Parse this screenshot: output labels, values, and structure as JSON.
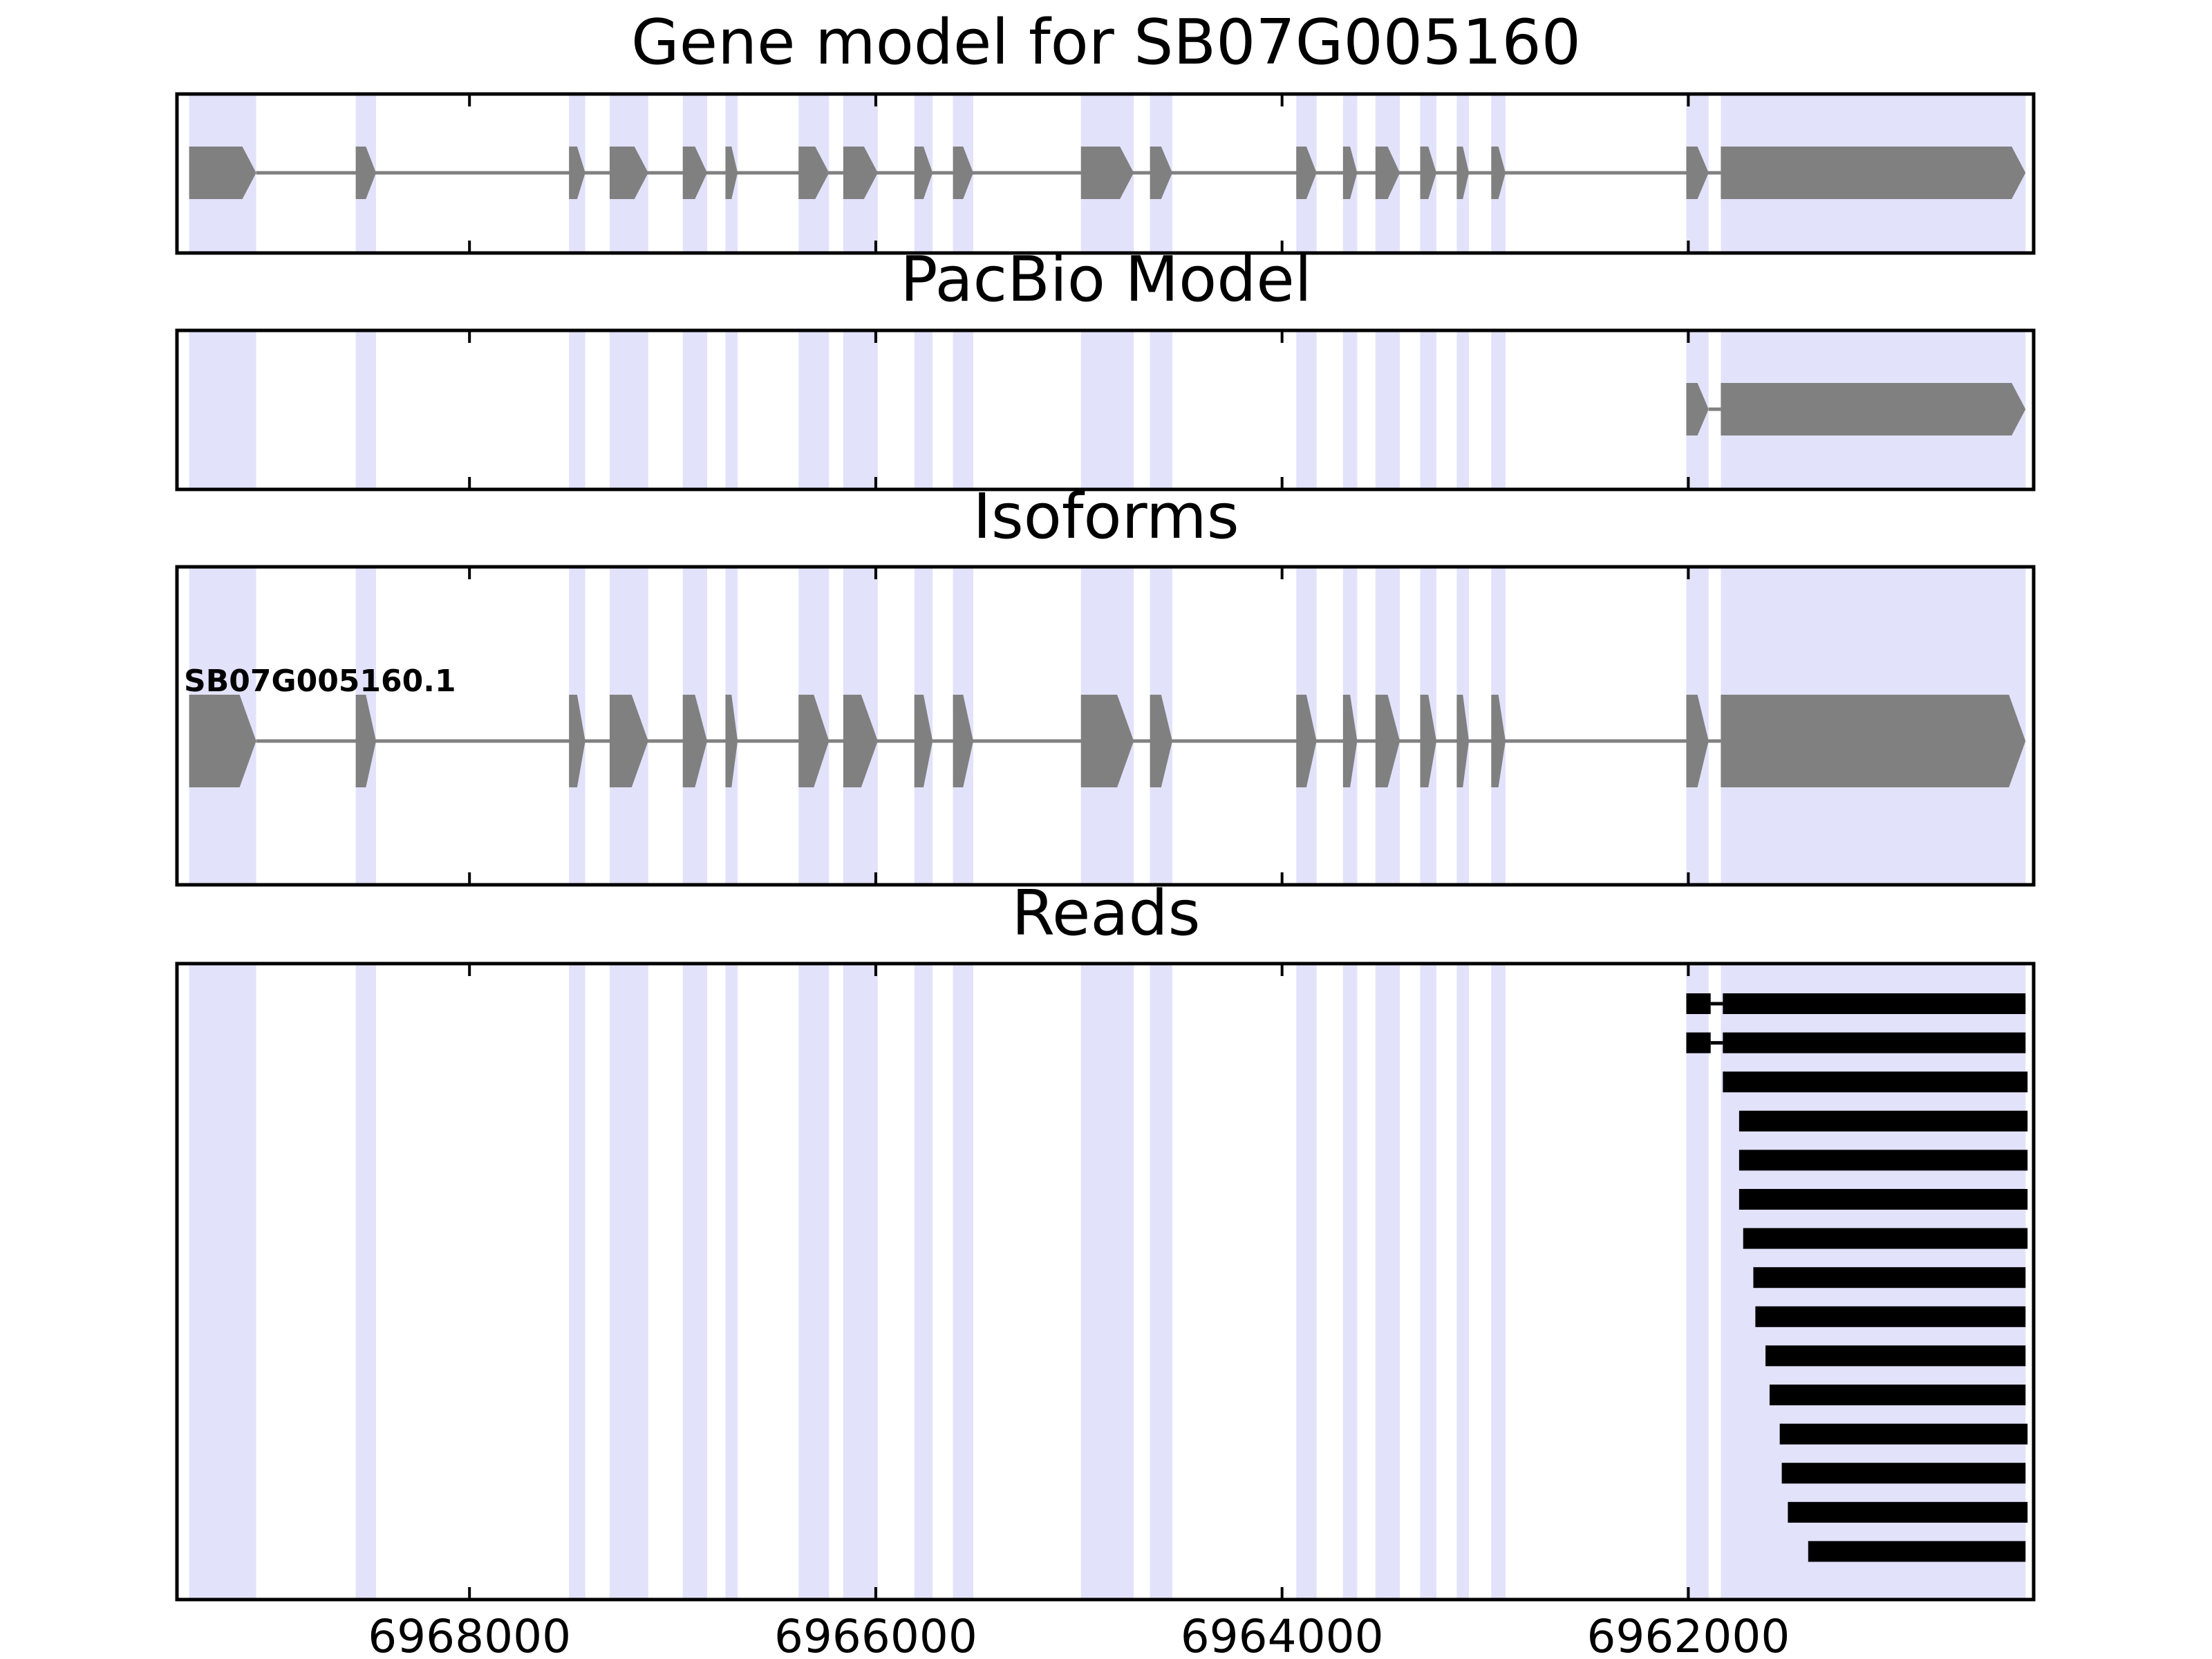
{
  "chart_data": {
    "type": "gene-track",
    "x_axis": {
      "reversed": true,
      "xlim": [
        6969440,
        6960300
      ],
      "ticks": [
        6968000,
        6966000,
        6964000,
        6962000
      ],
      "tick_labels": [
        "6968000",
        "6966000",
        "6964000",
        "6962000"
      ]
    },
    "strand": "-",
    "highlight_color": "#e2e2fb",
    "feature_color": "#808080",
    "read_color": "#000000",
    "exon_regions": [
      [
        6969380,
        6969050
      ],
      [
        6968560,
        6968460
      ],
      [
        6967510,
        6967430
      ],
      [
        6967310,
        6967120
      ],
      [
        6966950,
        6966830
      ],
      [
        6966740,
        6966680
      ],
      [
        6966380,
        6966230
      ],
      [
        6966160,
        6965990
      ],
      [
        6965810,
        6965720
      ],
      [
        6965620,
        6965520
      ],
      [
        6964990,
        6964730
      ],
      [
        6964650,
        6964540
      ],
      [
        6963930,
        6963830
      ],
      [
        6963700,
        6963630
      ],
      [
        6963540,
        6963420
      ],
      [
        6963320,
        6963240
      ],
      [
        6963140,
        6963080
      ],
      [
        6962970,
        6962900
      ],
      [
        6962010,
        6961900
      ],
      [
        6961840,
        6960340
      ]
    ],
    "panels": [
      {
        "title": "Gene model for SB07G005160",
        "models": [
          {
            "label": "",
            "exons": [
              [
                6969380,
                6969050
              ],
              [
                6968560,
                6968460
              ],
              [
                6967510,
                6967430
              ],
              [
                6967310,
                6967120
              ],
              [
                6966950,
                6966830
              ],
              [
                6966740,
                6966680
              ],
              [
                6966380,
                6966230
              ],
              [
                6966160,
                6965990
              ],
              [
                6965810,
                6965720
              ],
              [
                6965620,
                6965520
              ],
              [
                6964990,
                6964730
              ],
              [
                6964650,
                6964540
              ],
              [
                6963930,
                6963830
              ],
              [
                6963700,
                6963630
              ],
              [
                6963540,
                6963420
              ],
              [
                6963320,
                6963240
              ],
              [
                6963140,
                6963080
              ],
              [
                6962970,
                6962900
              ],
              [
                6962010,
                6961900
              ],
              [
                6961840,
                6960340
              ]
            ]
          }
        ]
      },
      {
        "title": "PacBio Model",
        "models": [
          {
            "label": "",
            "exons": [
              [
                6962010,
                6961900
              ],
              [
                6961840,
                6960340
              ]
            ]
          }
        ]
      },
      {
        "title": "Isoforms",
        "models": [
          {
            "label": "SB07G005160.1",
            "exons": [
              [
                6969380,
                6969050
              ],
              [
                6968560,
                6968460
              ],
              [
                6967510,
                6967430
              ],
              [
                6967310,
                6967120
              ],
              [
                6966950,
                6966830
              ],
              [
                6966740,
                6966680
              ],
              [
                6966380,
                6966230
              ],
              [
                6966160,
                6965990
              ],
              [
                6965810,
                6965720
              ],
              [
                6965620,
                6965520
              ],
              [
                6964990,
                6964730
              ],
              [
                6964650,
                6964540
              ],
              [
                6963930,
                6963830
              ],
              [
                6963700,
                6963630
              ],
              [
                6963540,
                6963420
              ],
              [
                6963320,
                6963240
              ],
              [
                6963140,
                6963080
              ],
              [
                6962970,
                6962900
              ],
              [
                6962010,
                6961900
              ],
              [
                6961840,
                6960340
              ]
            ]
          }
        ]
      },
      {
        "title": "Reads",
        "reads": [
          [
            [
              6962010,
              6961890
            ],
            [
              6961830,
              6960340
            ]
          ],
          [
            [
              6962010,
              6961890
            ],
            [
              6961830,
              6960340
            ]
          ],
          [
            [
              6961830,
              6960330
            ]
          ],
          [
            [
              6961750,
              6960330
            ]
          ],
          [
            [
              6961750,
              6960330
            ]
          ],
          [
            [
              6961750,
              6960330
            ]
          ],
          [
            [
              6961730,
              6960330
            ]
          ],
          [
            [
              6961680,
              6960340
            ]
          ],
          [
            [
              6961670,
              6960340
            ]
          ],
          [
            [
              6961620,
              6960340
            ]
          ],
          [
            [
              6961600,
              6960340
            ]
          ],
          [
            [
              6961550,
              6960330
            ]
          ],
          [
            [
              6961540,
              6960340
            ]
          ],
          [
            [
              6961510,
              6960330
            ]
          ],
          [
            [
              6961410,
              6960340
            ]
          ]
        ]
      }
    ]
  }
}
